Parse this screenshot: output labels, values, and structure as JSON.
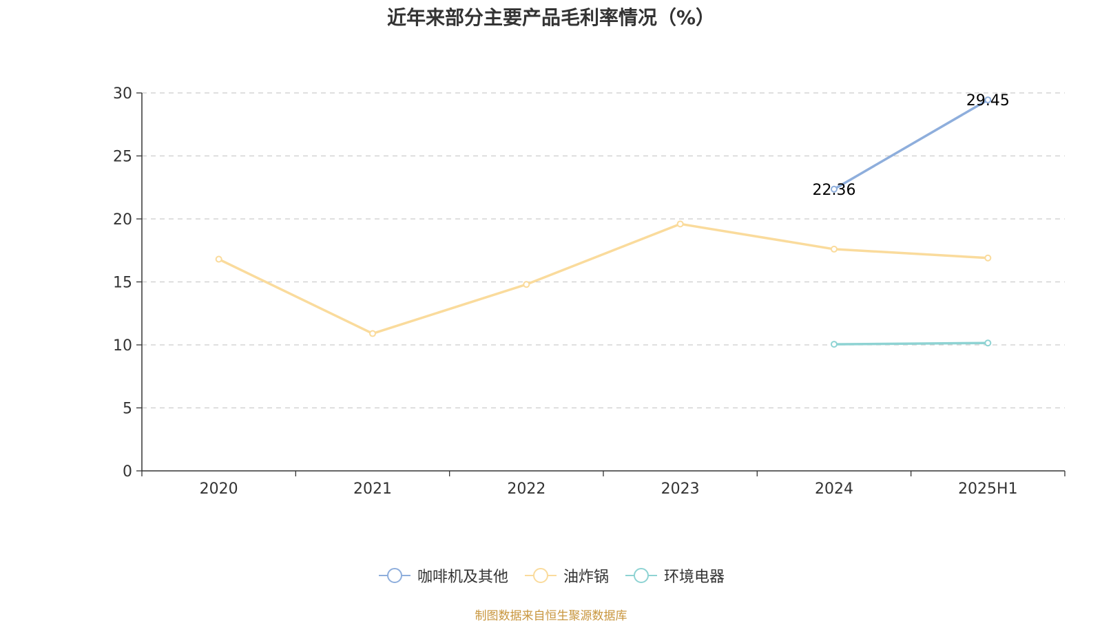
{
  "chart_data": {
    "type": "line",
    "title": "近年来部分主要产品毛利率情况（%）",
    "categories": [
      "2020",
      "2021",
      "2022",
      "2023",
      "2024",
      "2025H1"
    ],
    "ylim": [
      0,
      30
    ],
    "yticks": [
      0,
      5,
      10,
      15,
      20,
      25,
      30
    ],
    "grid": true,
    "legend_position": "bottom",
    "series": [
      {
        "name": "咖啡机及其他",
        "color": "#8eaedc",
        "values": [
          null,
          null,
          null,
          null,
          22.36,
          29.45
        ],
        "data_labels": [
          null,
          null,
          null,
          null,
          "22.36",
          "29.45"
        ]
      },
      {
        "name": "油炸锅",
        "color": "#fadb9c",
        "values": [
          16.8,
          10.9,
          14.8,
          19.6,
          17.6,
          16.9
        ],
        "data_labels": [
          null,
          null,
          null,
          null,
          null,
          null
        ]
      },
      {
        "name": "环境电器",
        "color": "#8ed3d3",
        "values": [
          null,
          null,
          null,
          null,
          10.05,
          10.15
        ],
        "data_labels": [
          null,
          null,
          null,
          null,
          null,
          null
        ]
      }
    ]
  },
  "source_note": "制图数据来自恒生聚源数据库"
}
